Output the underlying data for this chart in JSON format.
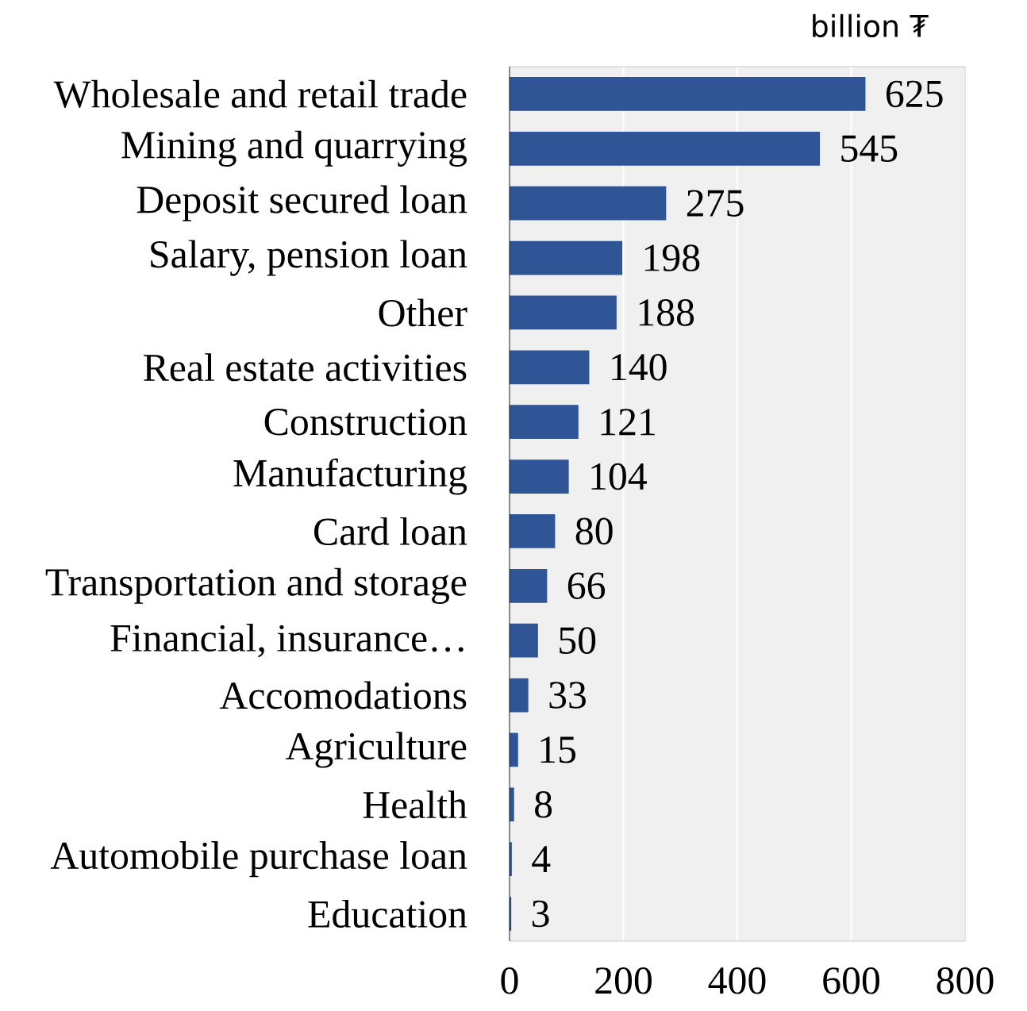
{
  "chart_data": {
    "type": "bar",
    "orientation": "horizontal",
    "title": "billion ₮",
    "categories": [
      "Wholesale and retail trade",
      "Mining and quarrying",
      "Deposit secured loan",
      "Salary, pension loan",
      "Other",
      "Real estate activities",
      "Construction",
      "Manufacturing",
      "Card loan",
      "Transportation and storage",
      "Financial, insurance…",
      "Accomodations",
      "Agriculture",
      "Health",
      "Automobile purchase loan",
      "Education"
    ],
    "values": [
      625,
      545,
      275,
      198,
      188,
      140,
      121,
      104,
      80,
      66,
      50,
      33,
      15,
      8,
      4,
      3
    ],
    "color": "#2f5597",
    "xlim": [
      0,
      800
    ],
    "xticks": [
      0,
      200,
      400,
      600,
      800
    ],
    "grid": "x",
    "data_labels": true
  }
}
